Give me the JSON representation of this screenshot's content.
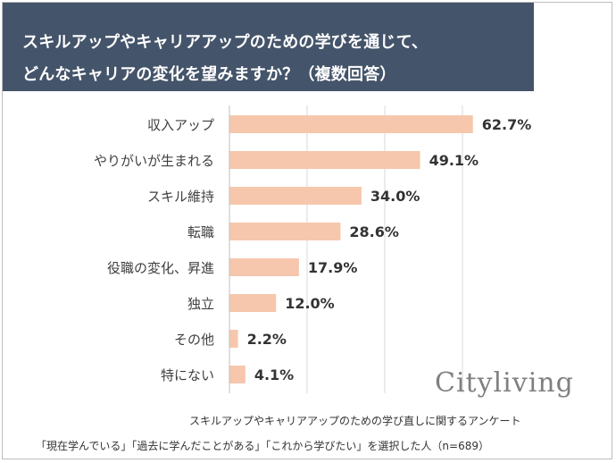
{
  "title": {
    "line1": "スキルアップやキャリアアップのための学びを通じて、",
    "line2": "どんなキャリアの変化を望みますか？（複数回答）"
  },
  "logo": "Cityliving",
  "source": {
    "line1": "スキルアップやキャリアアップのための学び直しに関するアンケート",
    "line2": "「現在学んでいる」「過去に学んだことがある」「これから学びたい」を選択した人（n=689）"
  },
  "colors": {
    "title_bg": "#44546a",
    "bar": "#f6c7ad",
    "grid": "#d9d9d9",
    "label": "#404040",
    "value": "#333333"
  },
  "chart_data": {
    "type": "bar",
    "orientation": "horizontal",
    "title": "スキルアップやキャリアアップのための学びを通じて、どんなキャリアの変化を望みますか？（複数回答）",
    "categories": [
      "収入アップ",
      "やりがいが生まれる",
      "スキル維持",
      "転職",
      "役職の変化、昇進",
      "独立",
      "その他",
      "特にない"
    ],
    "values": [
      62.7,
      49.1,
      34.0,
      28.6,
      17.9,
      12.0,
      2.2,
      4.1
    ],
    "value_labels": [
      "62.7%",
      "49.1%",
      "34.0%",
      "28.6%",
      "17.9%",
      "12.0%",
      "2.2%",
      "4.1%"
    ],
    "xlim": [
      0,
      70
    ],
    "grid": true,
    "legend": "none"
  }
}
